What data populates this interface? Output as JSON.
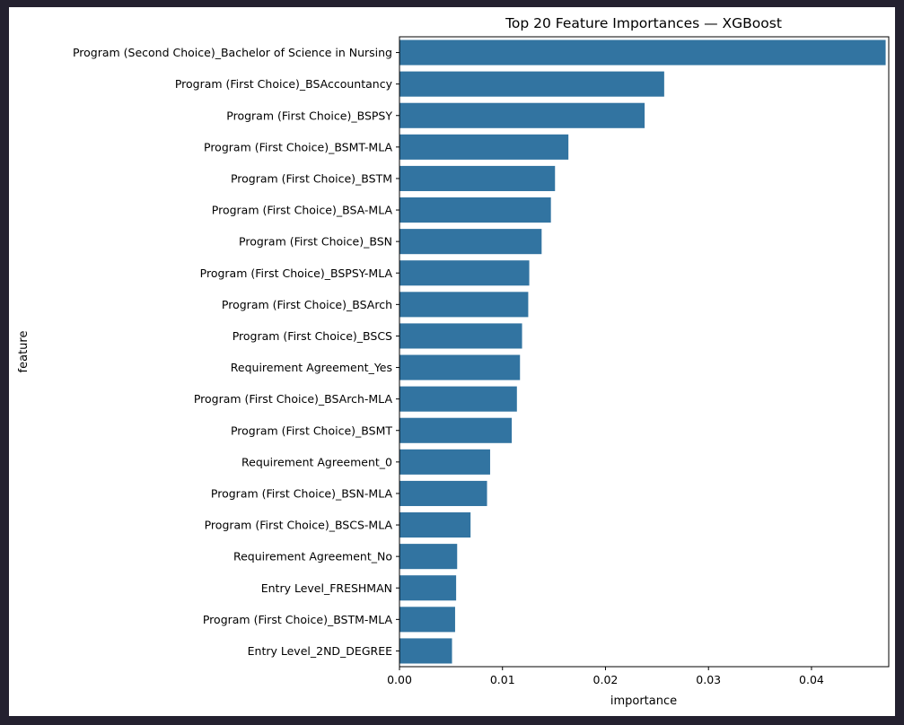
{
  "colors": {
    "background": "#24212f",
    "figure": "#ffffff",
    "bar": "#3274a1",
    "axis": "#000000"
  },
  "chart_data": {
    "type": "bar",
    "orientation": "horizontal",
    "title": "Top 20 Feature Importances — XGBoost",
    "xlabel": "importance",
    "ylabel": "feature",
    "xlim": [
      0,
      0.0475
    ],
    "xticks": [
      0.0,
      0.01,
      0.02,
      0.03,
      0.04
    ],
    "xtick_labels": [
      "0.00",
      "0.01",
      "0.02",
      "0.03",
      "0.04"
    ],
    "grid": false,
    "categories": [
      "Program (Second Choice)_Bachelor of Science in Nursing",
      "Program (First Choice)_BSAccountancy",
      "Program (First Choice)_BSPSY",
      "Program (First Choice)_BSMT-MLA",
      "Program (First Choice)_BSTM",
      "Program (First Choice)_BSA-MLA",
      "Program (First Choice)_BSN",
      "Program (First Choice)_BSPSY-MLA",
      "Program (First Choice)_BSArch",
      "Program (First Choice)_BSCS",
      "Requirement Agreement_Yes",
      "Program (First Choice)_BSArch-MLA",
      "Program (First Choice)_BSMT",
      "Requirement Agreement_0",
      "Program (First Choice)_BSN-MLA",
      "Program (First Choice)_BSCS-MLA",
      "Requirement Agreement_No",
      "Entry Level_FRESHMAN",
      "Program (First Choice)_BSTM-MLA",
      "Entry Level_2ND_DEGREE"
    ],
    "values": [
      0.0472,
      0.0257,
      0.0238,
      0.0164,
      0.0151,
      0.0147,
      0.0138,
      0.0126,
      0.0125,
      0.0119,
      0.0117,
      0.0114,
      0.0109,
      0.0088,
      0.0085,
      0.0069,
      0.0056,
      0.0055,
      0.0054,
      0.0051
    ]
  }
}
